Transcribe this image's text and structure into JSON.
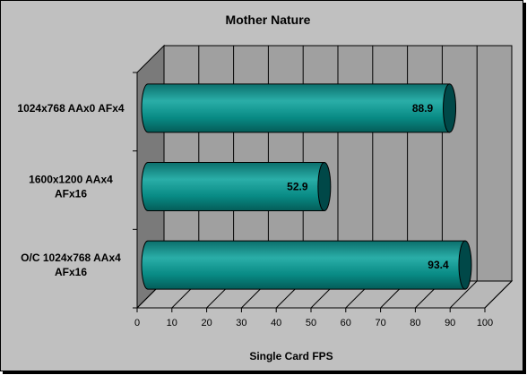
{
  "chart_data": {
    "type": "bar",
    "orientation": "horizontal",
    "title": "Mother Nature",
    "xlabel": "Single Card FPS",
    "ylabel": "",
    "categories": [
      [
        "1024x768  AAx0  AFx4"
      ],
      [
        "1600x1200  AAx4",
        "AFx16"
      ],
      [
        "O/C 1024x768  AAx4",
        "AFx16"
      ]
    ],
    "values": [
      88.9,
      52.9,
      93.4
    ],
    "data_labels": [
      "88.9",
      "52.9",
      "93.4"
    ],
    "xlim": [
      0,
      100
    ],
    "xticks": [
      "0",
      "10",
      "20",
      "30",
      "40",
      "50",
      "60",
      "70",
      "80",
      "90",
      "100"
    ],
    "grid": true,
    "legend": "none",
    "colors": {
      "bar_front": "#008080",
      "bar_highlight": "#2aaea8",
      "bar_cap": "#004848",
      "plot_back": "#a0a0a0",
      "plot_side": "#7a7a7a",
      "plot_floor": "#b8b8b8",
      "chart_bg": "#c0c0c0"
    }
  }
}
